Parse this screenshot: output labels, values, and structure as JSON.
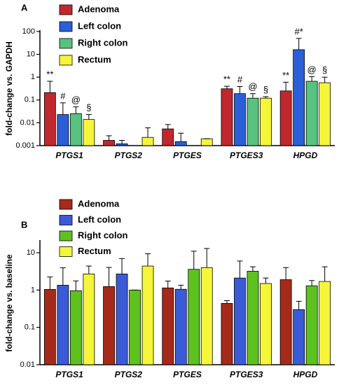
{
  "chart_data": [
    {
      "type": "bar",
      "panel_label": "A",
      "ylabel": "fold-change vs. GAPDH",
      "categories": [
        "PTGS1",
        "PTGS2",
        "PTGES",
        "PTGES3",
        "HPGD"
      ],
      "series": [
        {
          "name": "Adenoma",
          "color": "#c0282d",
          "values": [
            0.21,
            0.0017,
            0.0054,
            0.31,
            0.25
          ],
          "errors": [
            0.45,
            0.001,
            0.003,
            0.09,
            0.35
          ]
        },
        {
          "name": "Left colon",
          "color": "#2a5fd8",
          "values": [
            0.023,
            0.0012,
            0.0015,
            0.19,
            16
          ],
          "errors": [
            0.052,
            0.0005,
            0.002,
            0.2,
            34
          ]
        },
        {
          "name": "Right colon",
          "color": "#58c27f",
          "values": [
            0.025,
            0.001,
            0.001,
            0.12,
            0.66
          ],
          "errors": [
            0.025,
            0,
            0,
            0.07,
            0.4
          ]
        },
        {
          "name": "Rectum",
          "color": "#f5f53a",
          "values": [
            0.014,
            0.0023,
            0.002,
            0.12,
            0.57
          ],
          "errors": [
            0.009,
            0.0037,
            0,
            0.02,
            0.43
          ]
        }
      ],
      "ylim": [
        0.001,
        100
      ],
      "yticks": [
        0.001,
        0.01,
        0.1,
        1,
        10,
        100
      ],
      "log_scale": true,
      "annotations": [
        {
          "text": "**",
          "category": 0,
          "series": 0
        },
        {
          "text": "#",
          "category": 0,
          "series": 1
        },
        {
          "text": "@",
          "category": 0,
          "series": 2
        },
        {
          "text": "§",
          "category": 0,
          "series": 3
        },
        {
          "text": "**",
          "category": 3,
          "series": 0
        },
        {
          "text": "#",
          "category": 3,
          "series": 1
        },
        {
          "text": "@",
          "category": 3,
          "series": 2
        },
        {
          "text": "§",
          "category": 3,
          "series": 3
        },
        {
          "text": "**",
          "category": 4,
          "series": 0
        },
        {
          "text": "#*",
          "category": 4,
          "series": 1
        },
        {
          "text": "@",
          "category": 4,
          "series": 2
        },
        {
          "text": "§",
          "category": 4,
          "series": 3
        }
      ]
    },
    {
      "type": "bar",
      "panel_label": "B",
      "ylabel": "fold-change vs. baseline",
      "categories": [
        "PTGS1",
        "PTGS2",
        "PTGES",
        "PTGES3",
        "HPGD"
      ],
      "series": [
        {
          "name": "Adenoma",
          "color": "#a52a1a",
          "values": [
            1.04,
            1.24,
            1.14,
            0.44,
            1.9
          ],
          "errors": [
            1.2,
            2.8,
            0.6,
            0.08,
            2.1
          ]
        },
        {
          "name": "Left colon",
          "color": "#3b5bd6",
          "values": [
            1.35,
            2.7,
            1.05,
            2.1,
            0.3
          ],
          "errors": [
            2.6,
            4.3,
            0.3,
            3.9,
            0.2
          ]
        },
        {
          "name": "Right colon",
          "color": "#5dc21e",
          "values": [
            0.96,
            1.0,
            3.6,
            3.2,
            1.3
          ],
          "errors": [
            0.8,
            0,
            7.4,
            1,
            0.5
          ]
        },
        {
          "name": "Rectum",
          "color": "#f5f53a",
          "values": [
            2.7,
            4.4,
            4.0,
            1.5,
            1.7
          ],
          "errors": [
            1.7,
            5,
            9,
            0.6,
            2.5
          ]
        }
      ],
      "ylim": [
        0.01,
        20
      ],
      "yticks": [
        0.01,
        0.1,
        1,
        10
      ],
      "log_scale": true
    }
  ]
}
